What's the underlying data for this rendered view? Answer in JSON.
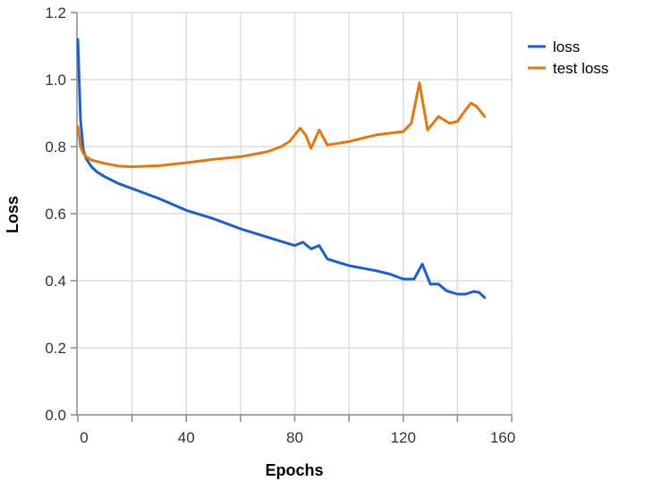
{
  "chart_data": {
    "type": "line",
    "title": "",
    "xlabel": "Epochs",
    "ylabel": "Loss",
    "xlim": [
      0,
      160
    ],
    "ylim": [
      0,
      1.2
    ],
    "xticks": [
      0,
      40,
      80,
      120,
      160
    ],
    "xgrid": [
      0,
      20,
      40,
      60,
      80,
      100,
      120,
      140,
      160
    ],
    "yticks": [
      0.0,
      0.2,
      0.4,
      0.6,
      0.8,
      1.0,
      1.2
    ],
    "ytick_labels": [
      "0.0",
      "0.2",
      "0.4",
      "0.6",
      "0.8",
      "1.0",
      "1.2"
    ],
    "xtick_labels": [
      "0",
      "40",
      "80",
      "120",
      "160"
    ],
    "grid": true,
    "legend_position": "right-top",
    "series": [
      {
        "name": "loss",
        "color": "#1a5fd6",
        "x": [
          0,
          1,
          2,
          3,
          5,
          7,
          10,
          15,
          20,
          30,
          40,
          50,
          60,
          70,
          78,
          80,
          83,
          86,
          89,
          92,
          96,
          100,
          110,
          115,
          120,
          124,
          127,
          130,
          133,
          136,
          140,
          143,
          146,
          148,
          150
        ],
        "y": [
          1.12,
          0.88,
          0.79,
          0.765,
          0.74,
          0.725,
          0.71,
          0.69,
          0.675,
          0.645,
          0.61,
          0.585,
          0.555,
          0.53,
          0.51,
          0.505,
          0.515,
          0.495,
          0.505,
          0.465,
          0.455,
          0.445,
          0.43,
          0.42,
          0.405,
          0.405,
          0.45,
          0.39,
          0.39,
          0.37,
          0.36,
          0.36,
          0.368,
          0.365,
          0.35
        ]
      },
      {
        "name": "test loss",
        "color": "#e8760f",
        "x": [
          0,
          1,
          2,
          3,
          5,
          10,
          15,
          20,
          30,
          40,
          50,
          60,
          70,
          75,
          78,
          82,
          84,
          86,
          89,
          92,
          96,
          100,
          105,
          110,
          115,
          120,
          123,
          126,
          129,
          131,
          133,
          135,
          137,
          140,
          143,
          145,
          147,
          150
        ],
        "y": [
          0.86,
          0.8,
          0.78,
          0.77,
          0.76,
          0.75,
          0.742,
          0.74,
          0.743,
          0.752,
          0.762,
          0.77,
          0.785,
          0.8,
          0.815,
          0.855,
          0.835,
          0.795,
          0.85,
          0.805,
          0.81,
          0.815,
          0.825,
          0.835,
          0.84,
          0.845,
          0.87,
          0.99,
          0.85,
          0.87,
          0.89,
          0.88,
          0.87,
          0.875,
          0.91,
          0.93,
          0.92,
          0.89
        ]
      }
    ]
  },
  "legend": {
    "items": [
      {
        "label": "loss",
        "color": "#1a5fd6"
      },
      {
        "label": "test loss",
        "color": "#e8760f"
      }
    ]
  },
  "axes": {
    "x_title": "Epochs",
    "y_title": "Loss"
  }
}
